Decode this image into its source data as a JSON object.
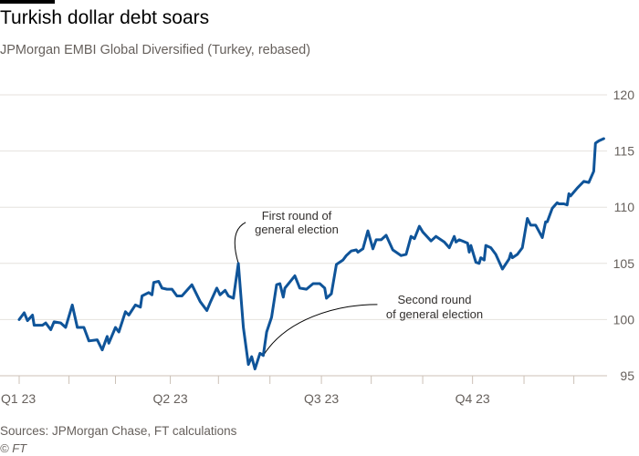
{
  "title": "Turkish dollar debt soars",
  "subtitle": "JPMorgan EMBI Global Diversified (Turkey, rebased)",
  "footer": {
    "sources": "Sources: JPMorgan Chase, FT calculations",
    "credit": "© FT"
  },
  "colors": {
    "line": "#0f5499",
    "grid": "#e6e2de",
    "axis": "#ccc1b7"
  },
  "chart_data": {
    "type": "line",
    "title": "Turkish dollar debt soars",
    "subtitle": "JPMorgan EMBI Global Diversified (Turkey, rebased)",
    "xlabel": "",
    "ylabel": "",
    "x_unit": "days since start of Q1 2023",
    "xlim": [
      0,
      354
    ],
    "ylim": [
      95,
      120
    ],
    "yticks": [
      95,
      100,
      105,
      110,
      115,
      120
    ],
    "xticks": [
      {
        "day": 0,
        "label": "Q1 23"
      },
      {
        "day": 91,
        "label": "Q2 23"
      },
      {
        "day": 182,
        "label": "Q3 23"
      },
      {
        "day": 273,
        "label": "Q4 23"
      }
    ],
    "minor_xticks": [
      30,
      58,
      120,
      151,
      212,
      243,
      304,
      334
    ],
    "grid": true,
    "legend": "none",
    "series": [
      {
        "name": "JPMorgan EMBI Global Diversified (Turkey, rebased)",
        "x": [
          0,
          3,
          5,
          8,
          9,
          14,
          16,
          19,
          21,
          25,
          28,
          32,
          35,
          39,
          42,
          47,
          50,
          53,
          54,
          58,
          60,
          64,
          66,
          70,
          73,
          74,
          78,
          80,
          81,
          84,
          86,
          89,
          92,
          95,
          98,
          104,
          109,
          113,
          115,
          119,
          121,
          124,
          126,
          129,
          132,
          135,
          138,
          140,
          142,
          145,
          147,
          149,
          152,
          155,
          157,
          159,
          160,
          166,
          169,
          173,
          177,
          181,
          184,
          185,
          188,
          191,
          195,
          197,
          200,
          203,
          204,
          207,
          210,
          213,
          215,
          218,
          221,
          225,
          230,
          233,
          236,
          238,
          241,
          243,
          248,
          251,
          256,
          259,
          262,
          263,
          265,
          270,
          271,
          272,
          275,
          277,
          278,
          280,
          281,
          284,
          287,
          291,
          295,
          296,
          297,
          300,
          303,
          306,
          308,
          311,
          315,
          317,
          318,
          321,
          324,
          325,
          328,
          330,
          331,
          332,
          336,
          340,
          343,
          346,
          347,
          349,
          352
        ],
        "y": [
          100.0,
          100.6,
          99.9,
          100.4,
          99.5,
          99.5,
          99.7,
          99.1,
          99.8,
          99.7,
          99.3,
          101.3,
          99.3,
          99.3,
          98.1,
          98.2,
          97.3,
          98.5,
          97.9,
          99.3,
          98.9,
          100.7,
          100.4,
          101.3,
          101.1,
          102.1,
          102.4,
          102.2,
          103.3,
          103.4,
          102.8,
          102.7,
          102.7,
          102.1,
          102.1,
          103.1,
          101.6,
          100.8,
          101.5,
          102.8,
          102.2,
          102.6,
          102.1,
          101.9,
          105.0,
          99.3,
          96.0,
          96.7,
          95.6,
          97.0,
          96.8,
          98.9,
          100.2,
          103.1,
          103.2,
          102.0,
          102.8,
          103.9,
          102.8,
          102.7,
          103.2,
          103.2,
          102.8,
          101.9,
          102.3,
          104.9,
          105.3,
          105.7,
          106.1,
          106.2,
          106.0,
          106.3,
          107.9,
          106.3,
          107.1,
          107.1,
          107.5,
          106.2,
          105.7,
          105.8,
          107.4,
          107.2,
          108.3,
          107.8,
          107.0,
          107.4,
          106.9,
          106.4,
          107.4,
          106.9,
          107.1,
          106.8,
          106.0,
          106.6,
          105.1,
          105.0,
          105.5,
          105.3,
          106.6,
          106.4,
          105.8,
          104.5,
          105.4,
          105.9,
          105.5,
          105.8,
          106.4,
          109.0,
          108.4,
          108.4,
          107.3,
          108.7,
          108.7,
          109.9,
          110.4,
          110.3,
          110.3,
          110.2,
          111.2,
          111.0,
          111.7,
          112.3,
          112.2,
          113.2,
          115.7,
          115.9,
          116.1
        ]
      }
    ],
    "annotations": [
      {
        "lines": [
          "First round of",
          "general election"
        ],
        "day": 132,
        "value": 105.0
      },
      {
        "lines": [
          "Second round",
          "of general election"
        ],
        "day": 147,
        "value": 96.8
      }
    ]
  }
}
